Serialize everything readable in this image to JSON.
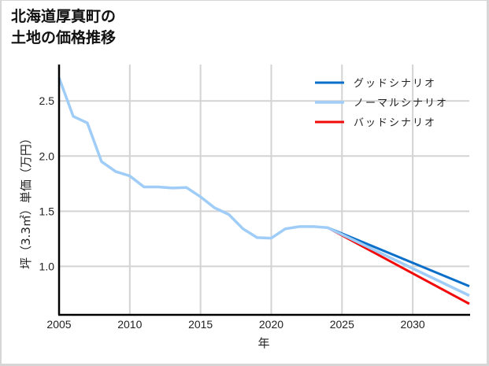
{
  "title": {
    "line1": "北海道厚真町の",
    "line2": "土地の価格推移"
  },
  "chart_data": {
    "type": "line",
    "title": "北海道厚真町の土地の価格推移",
    "xlabel": "年",
    "ylabel": "坪（3.3㎡）単価（万円）",
    "xlim": [
      2005,
      2034
    ],
    "ylim": [
      0.56,
      2.83
    ],
    "xticks": [
      2005,
      2010,
      2015,
      2020,
      2025,
      2030
    ],
    "xtick_labels": [
      "2005",
      "2010",
      "2015",
      "2020",
      "2025",
      "2030"
    ],
    "yticks": [
      1.0,
      1.5,
      2.0,
      2.5
    ],
    "ytick_labels": [
      "1.0",
      "1.5",
      "2.0",
      "2.5"
    ],
    "grid": true,
    "legend_position": "upper right",
    "series": [
      {
        "name": "グッドシナリオ",
        "color": "#0a6fc9",
        "width": 3,
        "x": [
          2024,
          2034
        ],
        "values": [
          1.35,
          0.82
        ]
      },
      {
        "name": "ノーマルシナリオ",
        "color": "#9fcdf7",
        "width": 3.5,
        "x": [
          2005,
          2006,
          2007,
          2008,
          2009,
          2010,
          2011,
          2012,
          2013,
          2014,
          2015,
          2016,
          2017,
          2018,
          2019,
          2020,
          2021,
          2022,
          2023,
          2024,
          2034
        ],
        "values": [
          2.71,
          2.36,
          2.3,
          1.95,
          1.86,
          1.82,
          1.72,
          1.72,
          1.71,
          1.715,
          1.63,
          1.53,
          1.47,
          1.34,
          1.26,
          1.255,
          1.34,
          1.36,
          1.36,
          1.35,
          0.735
        ]
      },
      {
        "name": "バッドシナリオ",
        "color": "#f00a0a",
        "width": 3,
        "x": [
          2024,
          2034
        ],
        "values": [
          1.35,
          0.66
        ]
      }
    ],
    "legend_order": [
      0,
      1,
      2
    ]
  }
}
